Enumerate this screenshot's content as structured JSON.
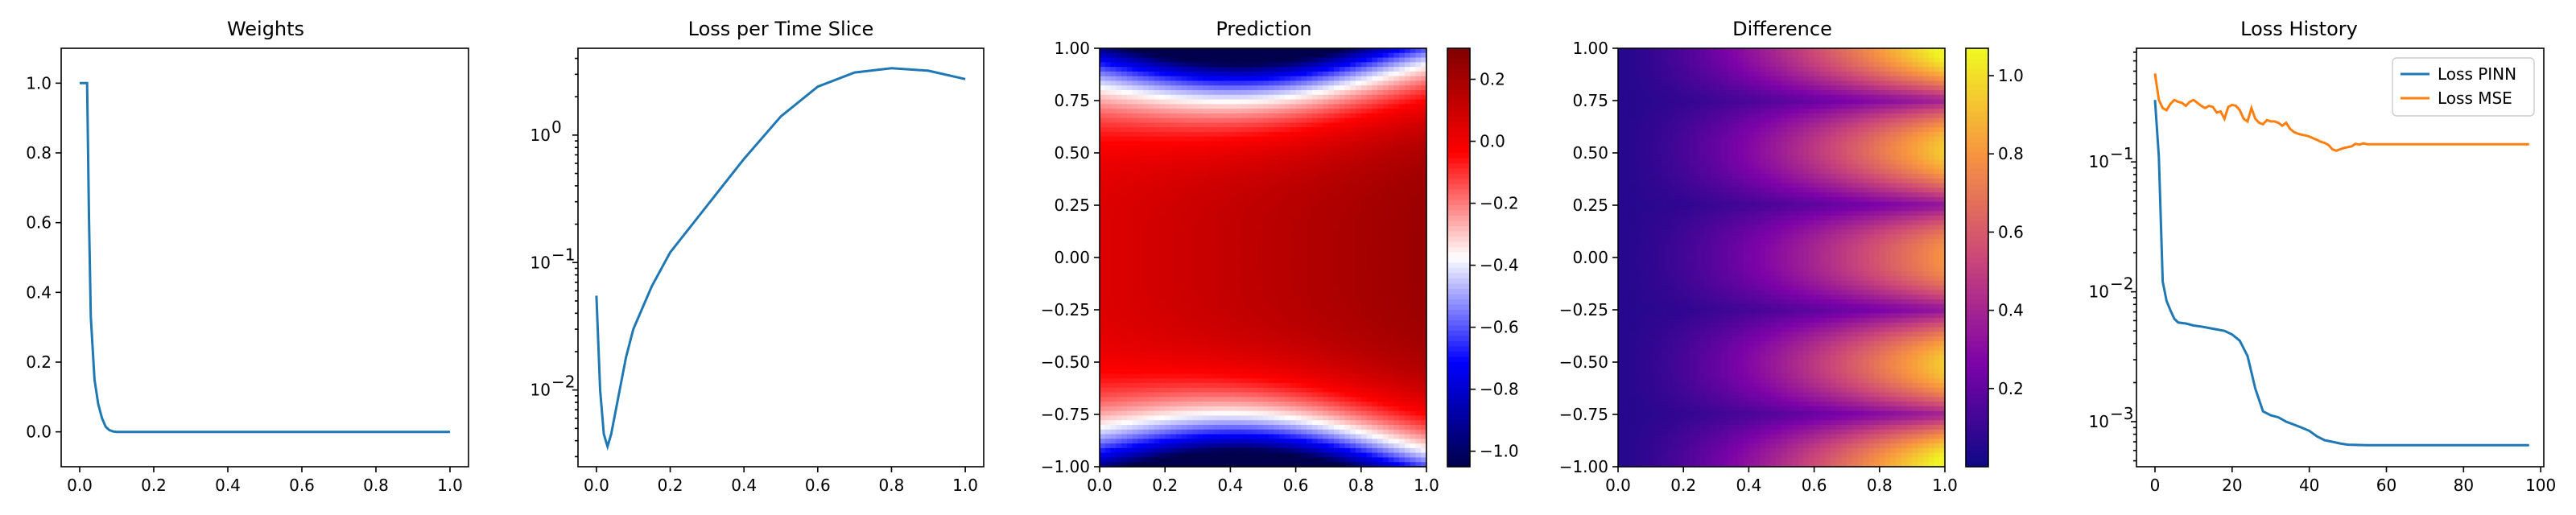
{
  "chart_data": [
    {
      "type": "line",
      "title": "Weights",
      "xlim": [
        -0.05,
        1.05
      ],
      "ylim": [
        -0.1,
        1.1
      ],
      "xticks": [
        0.0,
        0.2,
        0.4,
        0.6,
        0.8,
        1.0
      ],
      "xtick_labels": [
        "0.0",
        "0.2",
        "0.4",
        "0.6",
        "0.8",
        "1.0"
      ],
      "yticks": [
        0.0,
        0.2,
        0.4,
        0.6,
        0.8,
        1.0
      ],
      "ytick_labels": [
        "0.0",
        "0.2",
        "0.4",
        "0.6",
        "0.8",
        "1.0"
      ],
      "yscale": "linear",
      "grid": false,
      "series": [
        {
          "color": "#1f77b4",
          "x": [
            0.0,
            0.01,
            0.02,
            0.025,
            0.03,
            0.04,
            0.05,
            0.06,
            0.07,
            0.08,
            0.09,
            0.1,
            0.2,
            0.4,
            0.6,
            0.8,
            1.0
          ],
          "y": [
            1.0,
            1.0,
            1.0,
            0.62,
            0.33,
            0.15,
            0.08,
            0.04,
            0.015,
            0.005,
            0.001,
            0.0,
            0.0,
            0.0,
            0.0,
            0.0,
            0.0
          ]
        }
      ]
    },
    {
      "type": "line",
      "title": "Loss per Time Slice",
      "xlim": [
        -0.05,
        1.05
      ],
      "ylim": [
        0.0025,
        4.8
      ],
      "xticks": [
        0.0,
        0.2,
        0.4,
        0.6,
        0.8,
        1.0
      ],
      "xtick_labels": [
        "0.0",
        "0.2",
        "0.4",
        "0.6",
        "0.8",
        "1.0"
      ],
      "yticks": [
        0.01,
        0.1,
        1.0
      ],
      "ytick_labels": [
        [
          "10",
          "−2"
        ],
        [
          "10",
          "−1"
        ],
        [
          "10",
          "0"
        ]
      ],
      "yscale": "log",
      "grid": false,
      "series": [
        {
          "color": "#1f77b4",
          "x": [
            0.0,
            0.01,
            0.02,
            0.03,
            0.04,
            0.06,
            0.08,
            0.1,
            0.15,
            0.2,
            0.3,
            0.4,
            0.5,
            0.6,
            0.7,
            0.8,
            0.9,
            1.0
          ],
          "y": [
            0.055,
            0.01,
            0.0045,
            0.0036,
            0.0045,
            0.009,
            0.018,
            0.03,
            0.065,
            0.12,
            0.28,
            0.65,
            1.4,
            2.4,
            3.1,
            3.35,
            3.2,
            2.75
          ]
        }
      ]
    },
    {
      "type": "heatmap",
      "title": "Prediction",
      "xlim": [
        0.0,
        1.0
      ],
      "ylim": [
        -1.0,
        1.0
      ],
      "xticks": [
        0.0,
        0.2,
        0.4,
        0.6,
        0.8,
        1.0
      ],
      "xtick_labels": [
        "0.0",
        "0.2",
        "0.4",
        "0.6",
        "0.8",
        "1.0"
      ],
      "yticks": [
        -1.0,
        -0.75,
        -0.5,
        -0.25,
        0.0,
        0.25,
        0.5,
        0.75,
        1.0
      ],
      "ytick_labels": [
        "−1.00",
        "−0.75",
        "−0.50",
        "−0.25",
        "0.00",
        "0.25",
        "0.50",
        "0.75",
        "1.00"
      ],
      "colormap": "seismic",
      "colorbar": {
        "range": [
          -1.05,
          0.3
        ],
        "ticks": [
          0.2,
          0.0,
          -0.2,
          -0.4,
          -0.6,
          -0.8,
          -1.0
        ],
        "tick_labels": [
          "0.2",
          "0.0",
          "−0.2",
          "−0.4",
          "−0.6",
          "−0.8",
          "−1.0"
        ]
      }
    },
    {
      "type": "heatmap",
      "title": "Difference",
      "xlim": [
        0.0,
        1.0
      ],
      "ylim": [
        -1.0,
        1.0
      ],
      "xticks": [
        0.0,
        0.2,
        0.4,
        0.6,
        0.8,
        1.0
      ],
      "xtick_labels": [
        "0.0",
        "0.2",
        "0.4",
        "0.6",
        "0.8",
        "1.0"
      ],
      "yticks": [
        -1.0,
        -0.75,
        -0.5,
        -0.25,
        0.0,
        0.25,
        0.5,
        0.75,
        1.0
      ],
      "ytick_labels": [
        "−1.00",
        "−0.75",
        "−0.50",
        "−0.25",
        "0.00",
        "0.25",
        "0.50",
        "0.75",
        "1.00"
      ],
      "colormap": "plasma",
      "colorbar": {
        "range": [
          0.0,
          1.07
        ],
        "ticks": [
          0.2,
          0.4,
          0.6,
          0.8,
          1.0
        ],
        "tick_labels": [
          "0.2",
          "0.4",
          "0.6",
          "0.8",
          "1.0"
        ]
      }
    },
    {
      "type": "line",
      "title": "Loss History",
      "xlim": [
        -4.8,
        100.8
      ],
      "ylim": [
        0.00045,
        0.75
      ],
      "xticks": [
        0,
        20,
        40,
        60,
        80,
        100
      ],
      "xtick_labels": [
        "0",
        "20",
        "40",
        "60",
        "80",
        "100"
      ],
      "yticks": [
        0.001,
        0.01,
        0.1
      ],
      "ytick_labels": [
        [
          "10",
          "−3"
        ],
        [
          "10",
          "−2"
        ],
        [
          "10",
          "−1"
        ]
      ],
      "yscale": "log",
      "grid": false,
      "legend_position": "top-right",
      "series": [
        {
          "name": "Loss PINN",
          "color": "#1f77b4",
          "x": [
            0,
            1,
            2,
            3,
            4,
            5,
            6,
            8,
            10,
            12,
            15,
            18,
            20,
            22,
            24,
            26,
            28,
            30,
            32,
            34,
            36,
            38,
            40,
            42,
            44,
            46,
            48,
            50,
            55,
            60,
            70,
            80,
            90,
            97
          ],
          "y": [
            0.3,
            0.11,
            0.012,
            0.0085,
            0.0072,
            0.0062,
            0.0058,
            0.0057,
            0.0055,
            0.0054,
            0.0052,
            0.005,
            0.0047,
            0.0042,
            0.0032,
            0.0018,
            0.0012,
            0.00112,
            0.00108,
            0.001,
            0.00095,
            0.0009,
            0.00085,
            0.00077,
            0.00072,
            0.0007,
            0.00068,
            0.000665,
            0.00066,
            0.00066,
            0.00066,
            0.00066,
            0.00066,
            0.00066
          ]
        },
        {
          "name": "Loss MSE",
          "color": "#ff7f0e",
          "x": [
            0,
            1,
            2,
            3,
            4,
            5,
            6,
            7,
            8,
            9,
            10,
            11,
            12,
            13,
            14,
            15,
            16,
            17,
            18,
            19,
            20,
            21,
            22,
            23,
            24,
            25,
            26,
            27,
            28,
            29,
            30,
            31,
            32,
            33,
            34,
            35,
            36,
            37,
            38,
            39,
            40,
            41,
            42,
            43,
            44,
            45,
            46,
            47,
            48,
            49,
            50,
            51,
            52,
            53,
            54,
            55,
            60,
            70,
            80,
            90,
            97
          ],
          "y": [
            0.48,
            0.3,
            0.26,
            0.25,
            0.28,
            0.3,
            0.29,
            0.285,
            0.27,
            0.29,
            0.3,
            0.285,
            0.27,
            0.26,
            0.27,
            0.265,
            0.24,
            0.245,
            0.215,
            0.265,
            0.275,
            0.27,
            0.25,
            0.215,
            0.205,
            0.26,
            0.215,
            0.2,
            0.195,
            0.21,
            0.205,
            0.205,
            0.2,
            0.19,
            0.2,
            0.18,
            0.17,
            0.165,
            0.162,
            0.16,
            0.157,
            0.152,
            0.148,
            0.143,
            0.14,
            0.135,
            0.125,
            0.122,
            0.125,
            0.128,
            0.13,
            0.132,
            0.138,
            0.136,
            0.139,
            0.137,
            0.137,
            0.137,
            0.137,
            0.137,
            0.137
          ]
        }
      ]
    }
  ]
}
